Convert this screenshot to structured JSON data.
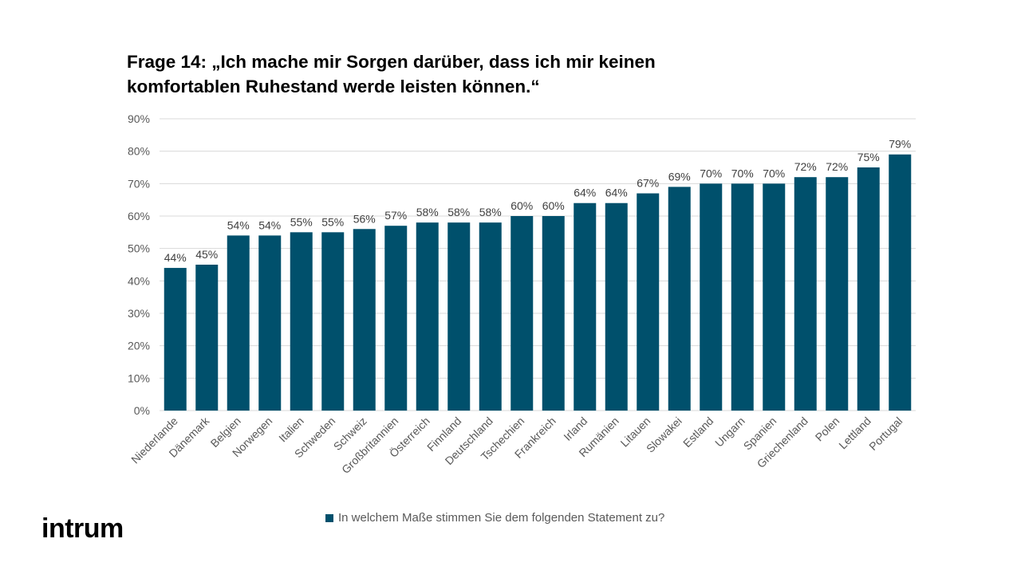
{
  "title": {
    "line1": "Frage 14: „Ich mache mir Sorgen darüber, dass ich mir keinen",
    "line2": "komfortablen Ruhestand werde leisten können.“"
  },
  "logo": {
    "text": "intrum"
  },
  "legend": {
    "label": "In welchem Maße stimmen Sie dem folgenden Statement zu?"
  },
  "colors": {
    "bar": "#00506c",
    "grid": "#d9d9d9",
    "axis_text": "#595959",
    "label_text": "#404040"
  },
  "chart_data": {
    "type": "bar",
    "title": "Frage 14: „Ich mache mir Sorgen darüber, dass ich mir keinen komfortablen Ruhestand werde leisten können.“",
    "xlabel": "",
    "ylabel": "",
    "ylim": [
      0,
      90
    ],
    "yticks": [
      0,
      10,
      20,
      30,
      40,
      50,
      60,
      70,
      80,
      90
    ],
    "ytick_labels": [
      "0%",
      "10%",
      "20%",
      "30%",
      "40%",
      "50%",
      "60%",
      "70%",
      "80%",
      "90%"
    ],
    "grid": true,
    "legend_position": "bottom",
    "categories": [
      "Niederlande",
      "Dänemark",
      "Belgien",
      "Norwegen",
      "Italien",
      "Schweden",
      "Schweiz",
      "Großbritannien",
      "Österreich",
      "Finnland",
      "Deutschland",
      "Tschechien",
      "Frankreich",
      "Irland",
      "Rumänien",
      "Litauen",
      "Slowakei",
      "Estland",
      "Ungarn",
      "Spanien",
      "Griechenland",
      "Polen",
      "Lettland",
      "Portugal"
    ],
    "series": [
      {
        "name": "In welchem Maße stimmen Sie dem folgenden Statement zu?",
        "values": [
          44,
          45,
          54,
          54,
          55,
          55,
          56,
          57,
          58,
          58,
          58,
          60,
          60,
          64,
          64,
          67,
          69,
          70,
          70,
          70,
          72,
          72,
          75,
          79
        ],
        "data_labels": [
          "44%",
          "45%",
          "54%",
          "54%",
          "55%",
          "55%",
          "56%",
          "57%",
          "58%",
          "58%",
          "58%",
          "60%",
          "60%",
          "64%",
          "64%",
          "67%",
          "69%",
          "70%",
          "70%",
          "70%",
          "72%",
          "72%",
          "75%",
          "79%"
        ]
      }
    ]
  }
}
